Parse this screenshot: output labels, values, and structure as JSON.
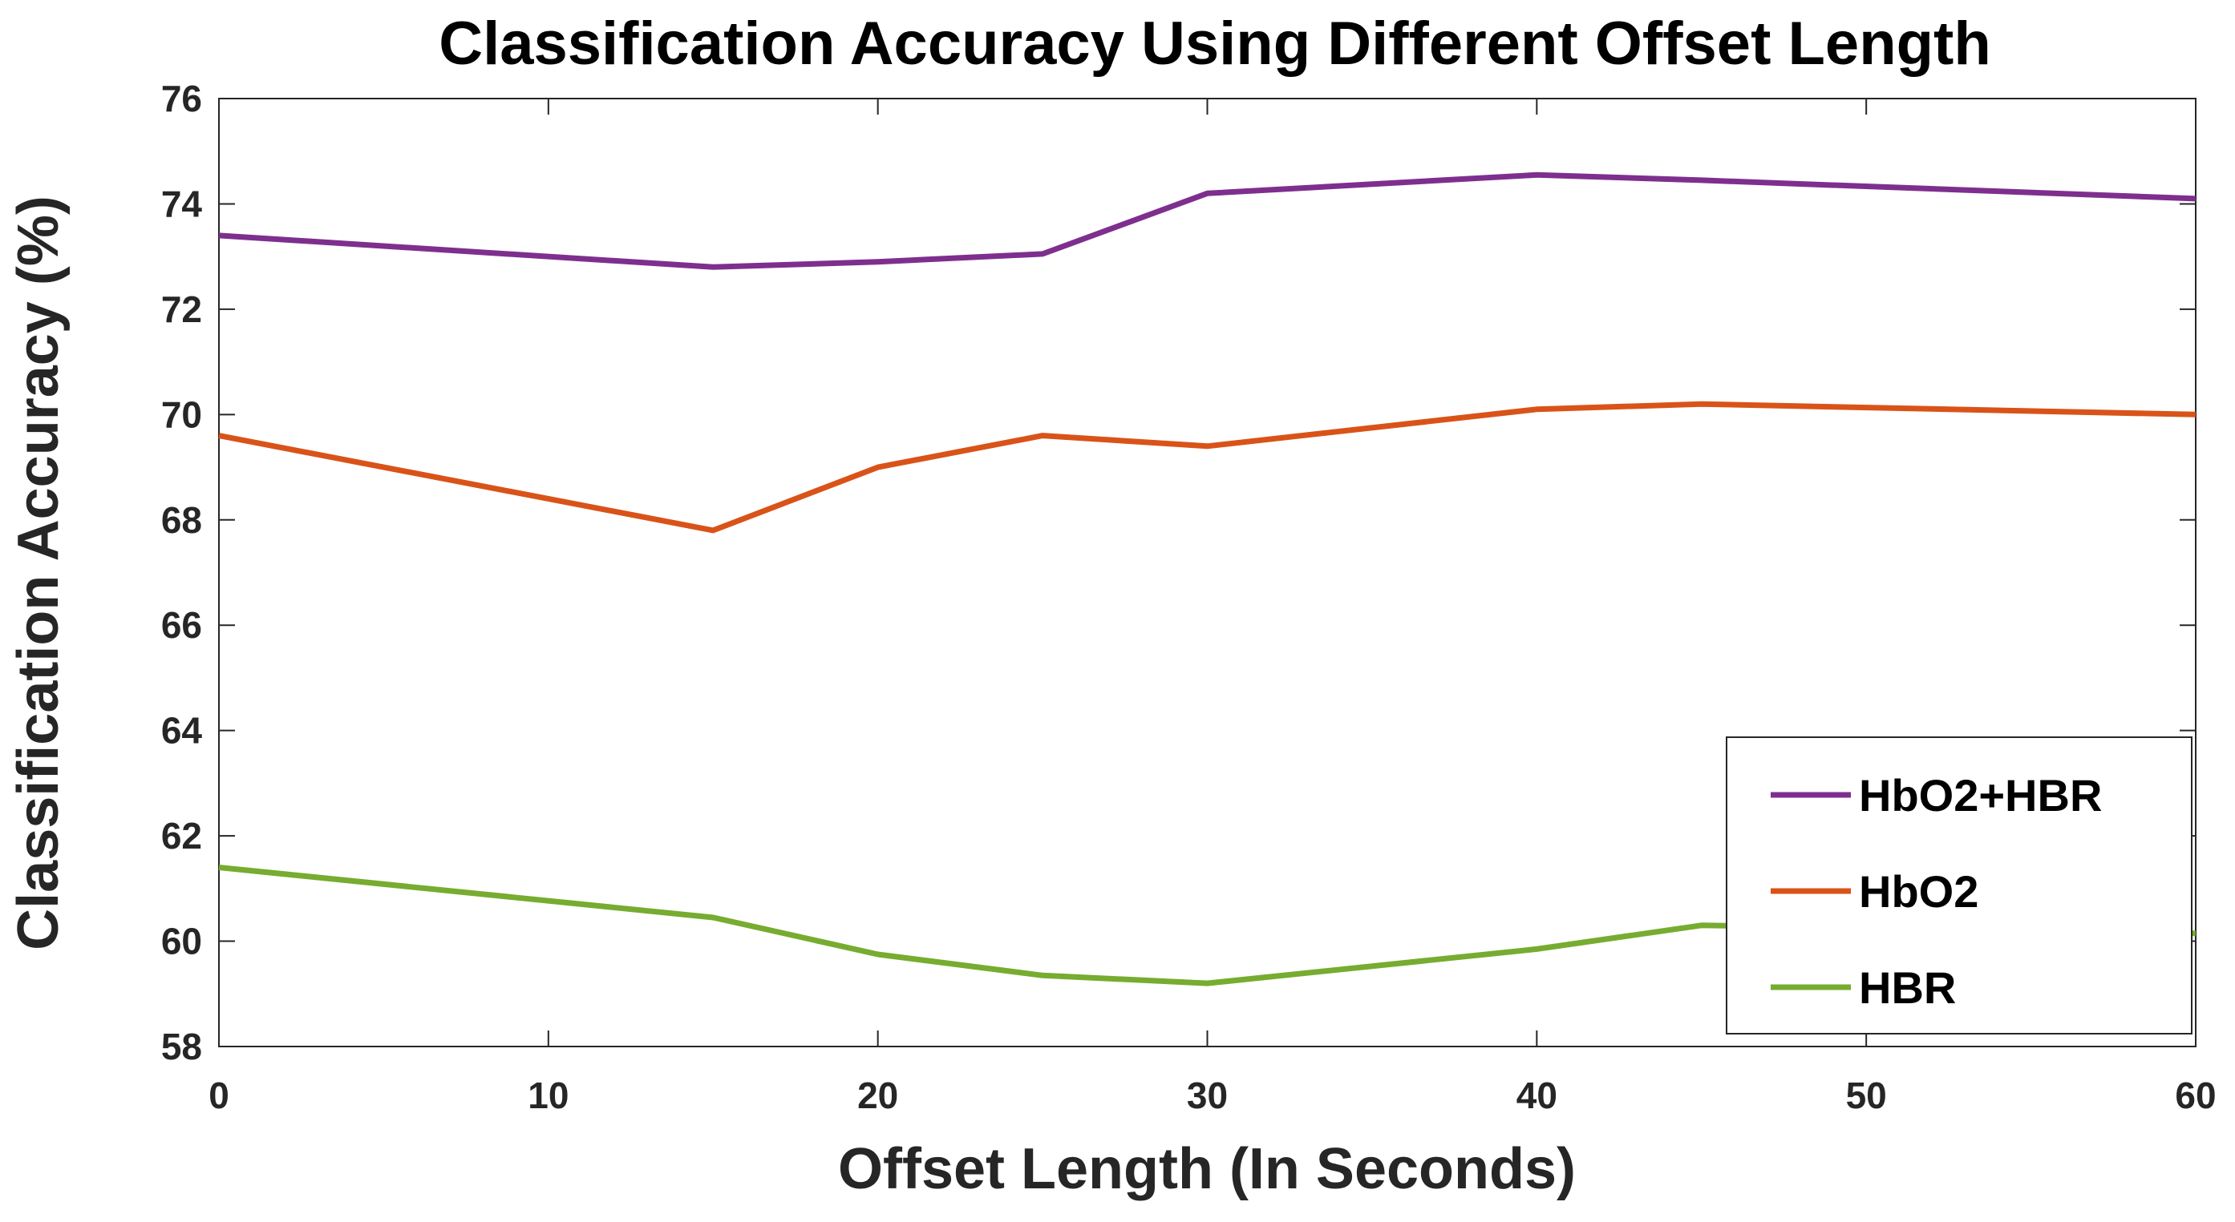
{
  "chart_data": {
    "type": "line",
    "title": "Classification Accuracy Using Different Offset Length",
    "xlabel": "Offset Length (In Seconds)",
    "ylabel": "Classification Accuracy (%)",
    "xlim": [
      0,
      60
    ],
    "ylim": [
      58,
      76
    ],
    "xticks": [
      0,
      10,
      20,
      30,
      40,
      50,
      60
    ],
    "yticks": [
      58,
      60,
      62,
      64,
      66,
      68,
      70,
      72,
      74,
      76
    ],
    "grid": false,
    "legend_position": "bottom-right",
    "x": [
      0,
      15,
      20,
      25,
      30,
      40,
      45,
      60
    ],
    "series": [
      {
        "name": "HbO2+HBR",
        "color": "#7E2F8E",
        "values": [
          73.4,
          72.8,
          72.9,
          73.05,
          74.2,
          74.55,
          74.45,
          74.1
        ]
      },
      {
        "name": "HbO2",
        "color": "#D95319",
        "values": [
          69.6,
          67.8,
          69.0,
          69.6,
          69.4,
          70.1,
          70.2,
          70.0
        ]
      },
      {
        "name": "HBR",
        "color": "#77AC30",
        "values": [
          61.4,
          60.45,
          59.75,
          59.35,
          59.2,
          59.85,
          60.3,
          60.15
        ]
      }
    ]
  }
}
